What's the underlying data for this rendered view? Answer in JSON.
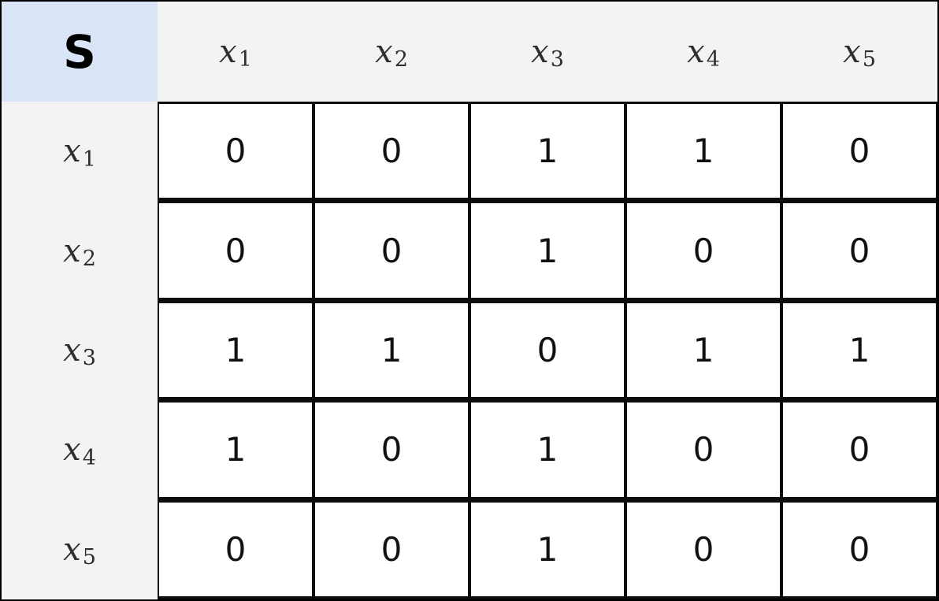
{
  "colors": {
    "corner_bg": "#d9e4f6",
    "header_bg": "#f3f3f3",
    "cell_bg": "#ffffff",
    "border": "#0c0c0c",
    "header_text": "#2e2e2e",
    "cell_text": "#111111"
  },
  "table": {
    "corner_label": "S",
    "col_headers": [
      {
        "var": "x",
        "sub": "1"
      },
      {
        "var": "x",
        "sub": "2"
      },
      {
        "var": "x",
        "sub": "3"
      },
      {
        "var": "x",
        "sub": "4"
      },
      {
        "var": "x",
        "sub": "5"
      }
    ],
    "row_headers": [
      {
        "var": "x",
        "sub": "1"
      },
      {
        "var": "x",
        "sub": "2"
      },
      {
        "var": "x",
        "sub": "3"
      },
      {
        "var": "x",
        "sub": "4"
      },
      {
        "var": "x",
        "sub": "5"
      }
    ]
  },
  "chart_data": {
    "type": "table",
    "title": "S",
    "col_headers": [
      "x1",
      "x2",
      "x3",
      "x4",
      "x5"
    ],
    "row_headers": [
      "x1",
      "x2",
      "x3",
      "x4",
      "x5"
    ],
    "matrix": [
      [
        0,
        0,
        1,
        1,
        0
      ],
      [
        0,
        0,
        1,
        0,
        0
      ],
      [
        1,
        1,
        0,
        1,
        1
      ],
      [
        1,
        0,
        1,
        0,
        0
      ],
      [
        0,
        0,
        1,
        0,
        0
      ]
    ]
  }
}
